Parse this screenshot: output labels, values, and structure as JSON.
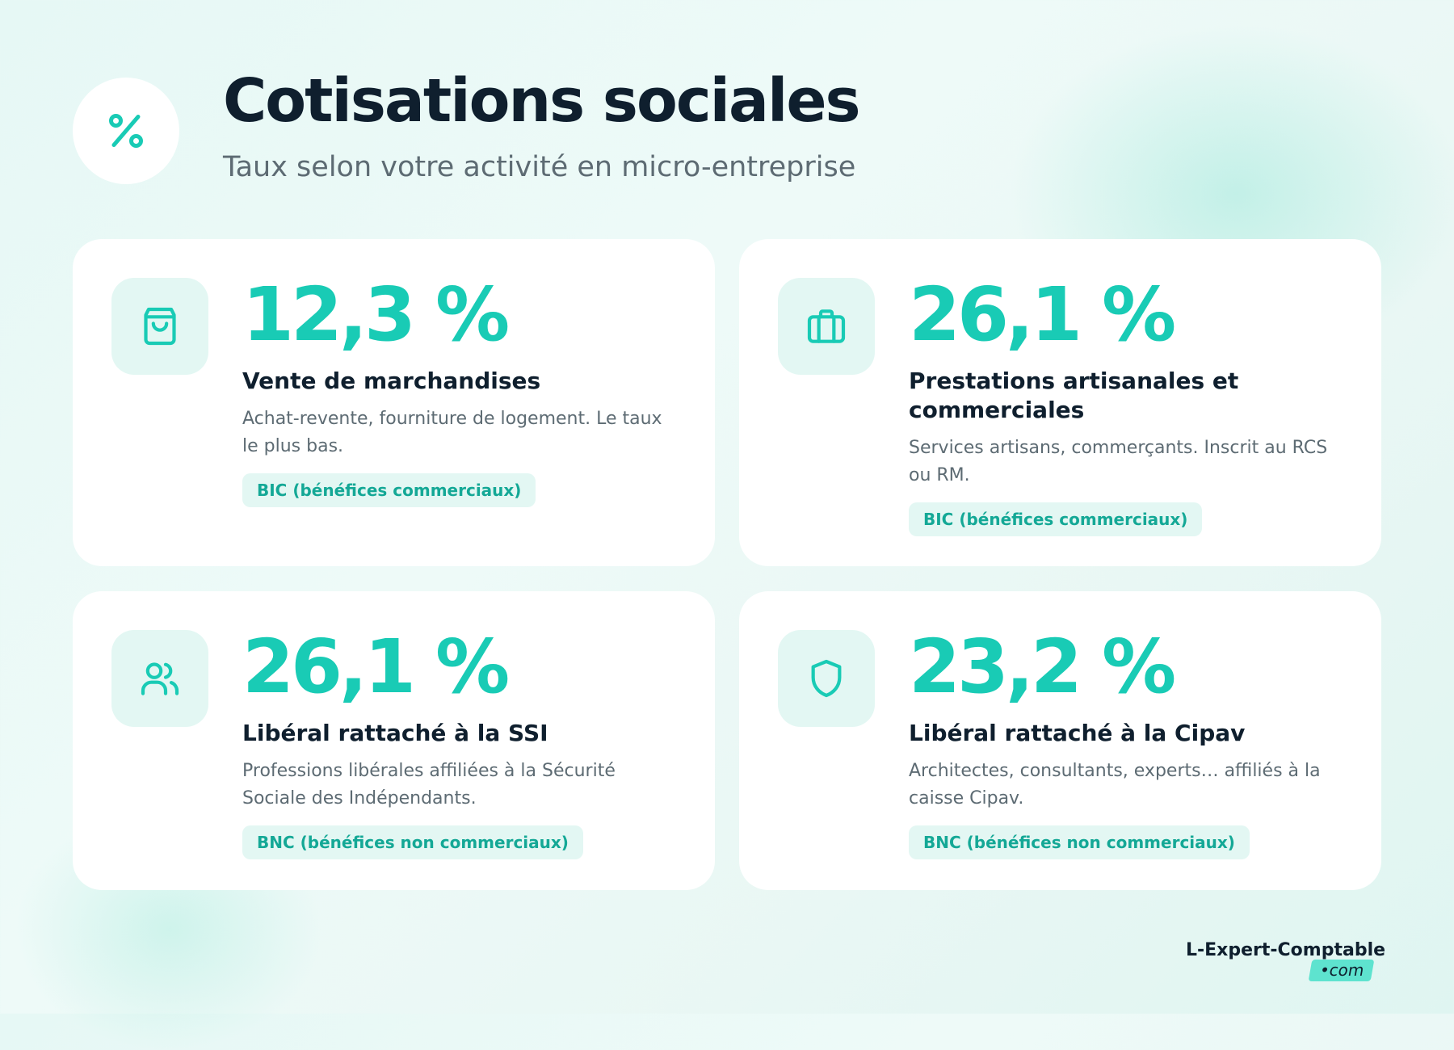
{
  "header": {
    "icon": "percent-icon",
    "title": "Cotisations sociales",
    "subtitle": "Taux selon votre activité en micro-entreprise"
  },
  "cards": [
    {
      "icon": "shopping-bag-icon",
      "rate": "12,3 %",
      "title": "Vente de marchandises",
      "description": "Achat-revente, fourniture de logement. Le taux le plus bas.",
      "badge": "BIC (bénéfices commerciaux)"
    },
    {
      "icon": "briefcase-icon",
      "rate": "26,1 %",
      "title": "Prestations artisanales et commerciales",
      "description": "Services artisans, commerçants. Inscrit au RCS ou RM.",
      "badge": "BIC (bénéfices commerciaux)"
    },
    {
      "icon": "users-icon",
      "rate": "26,1 %",
      "title": "Libéral rattaché à la SSI",
      "description": "Professions libérales affiliées à la Sécurité Sociale des Indépendants.",
      "badge": "BNC (bénéfices non commerciaux)"
    },
    {
      "icon": "shield-icon",
      "rate": "23,2 %",
      "title": "Libéral rattaché à la Cipav",
      "description": "Architectes, consultants, experts… affiliés à la caisse Cipav.",
      "badge": "BNC (bénéfices non commerciaux)"
    }
  ],
  "brand": {
    "name": "L-Expert-Comptable",
    "tld": "•com"
  },
  "colors": {
    "accent": "#19cbb5",
    "accent_soft": "#e3f7f3",
    "heading": "#0f1f2e",
    "text": "#5d6b73",
    "brand_highlight": "#5ee3cf"
  }
}
